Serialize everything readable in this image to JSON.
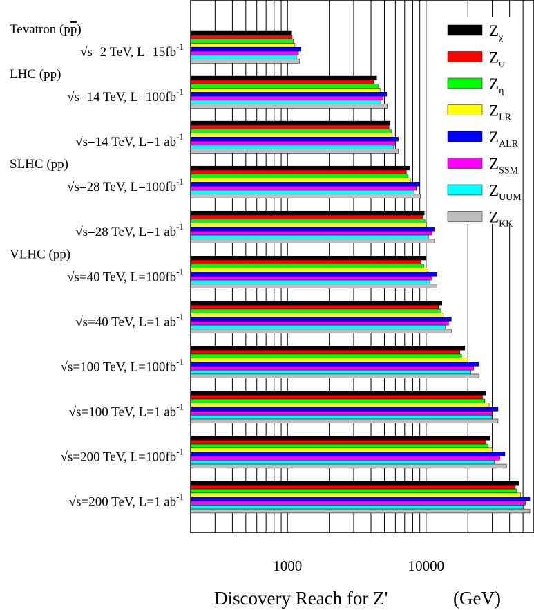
{
  "chart_data": {
    "type": "bar",
    "orientation": "horizontal",
    "xscale": "log",
    "xlim": [
      200,
      60000
    ],
    "xlabel_main": "Discovery Reach for Z'",
    "xlabel_unit": "(GeV)",
    "xticks": [
      {
        "value": 1000,
        "label": "1000"
      },
      {
        "value": 10000,
        "label": "10000"
      }
    ],
    "grid": "vertical, every decade subdivision",
    "legend_position": "top-right",
    "series": [
      {
        "name": "Z",
        "sub": "χ",
        "color": "#000000"
      },
      {
        "name": "Z",
        "sub": "ψ",
        "color": "#ff0000"
      },
      {
        "name": "Z",
        "sub": "η",
        "color": "#00ff00"
      },
      {
        "name": "Z",
        "sub": "LR",
        "color": "#ffff00"
      },
      {
        "name": "Z",
        "sub": "ALR",
        "color": "#0000ff"
      },
      {
        "name": "Z",
        "sub": "SSM",
        "color": "#ff00ff"
      },
      {
        "name": "Z",
        "sub": "UUM",
        "color": "#00ffff"
      },
      {
        "name": "Z",
        "sub": "KK",
        "color": "#bebebe"
      }
    ],
    "groups": [
      {
        "machine": "Tevatron (p",
        "machine_bar": "p",
        "machine_end": ")",
        "label": "√s=2 TeV, L=15fb",
        "sup": "-1",
        "values": [
          1060,
          1080,
          1100,
          1130,
          1250,
          1200,
          1160,
          1220
        ]
      },
      {
        "machine": "LHC (pp)",
        "machine_bar": "",
        "machine_end": "",
        "label": "√s=14 TeV, L=100fb",
        "sup": "-1",
        "values": [
          4400,
          4200,
          4500,
          4650,
          5200,
          4900,
          4700,
          5250
        ]
      },
      {
        "machine": "",
        "machine_bar": "",
        "machine_end": "",
        "label": "√s=14 TeV, L=1 ab",
        "sup": "-1",
        "values": [
          5500,
          5400,
          5600,
          5700,
          6300,
          6000,
          5800,
          6300
        ]
      },
      {
        "machine": "SLHC (pp)",
        "machine_bar": "",
        "machine_end": "",
        "label": "√s=28 TeV, L=100fb",
        "sup": "-1",
        "values": [
          7600,
          7200,
          7400,
          7700,
          9000,
          8500,
          8200,
          9100
        ]
      },
      {
        "machine": "",
        "machine_bar": "",
        "machine_end": "",
        "label": "√s=28 TeV, L=1 ab",
        "sup": "-1",
        "values": [
          9700,
          9500,
          9800,
          10100,
          11500,
          11000,
          10400,
          11500
        ]
      },
      {
        "machine": "VLHC (pp)",
        "machine_bar": "",
        "machine_end": "",
        "label": "√s=40 TeV, L=100fb",
        "sup": "-1",
        "values": [
          10000,
          9200,
          9600,
          10300,
          12000,
          11000,
          10700,
          12000
        ]
      },
      {
        "machine": "",
        "machine_bar": "",
        "machine_end": "",
        "label": "√s=40 TeV, L=1 ab",
        "sup": "-1",
        "values": [
          13000,
          12300,
          12800,
          13400,
          15200,
          14500,
          13800,
          15200
        ]
      },
      {
        "machine": "",
        "machine_bar": "",
        "machine_end": "",
        "label": "√s=100 TeV, L=100fb",
        "sup": "-1",
        "values": [
          19000,
          17500,
          18000,
          20000,
          24000,
          22000,
          21000,
          24000
        ]
      },
      {
        "machine": "",
        "machine_bar": "",
        "machine_end": "",
        "label": "√s=100 TeV, L=1 ab",
        "sup": "-1",
        "values": [
          27000,
          25500,
          26500,
          28500,
          33000,
          30000,
          29500,
          33000
        ]
      },
      {
        "machine": "",
        "machine_bar": "",
        "machine_end": "",
        "label": "√s=200 TeV, L=100fb",
        "sup": "-1",
        "values": [
          29000,
          27000,
          28000,
          30000,
          37000,
          34000,
          31000,
          38000
        ]
      },
      {
        "machine": "",
        "machine_bar": "",
        "machine_end": "",
        "label": "√s=200 TeV, L=1 ab",
        "sup": "-1",
        "values": [
          47000,
          44000,
          45000,
          48000,
          56000,
          52000,
          50000,
          56000
        ]
      }
    ]
  }
}
